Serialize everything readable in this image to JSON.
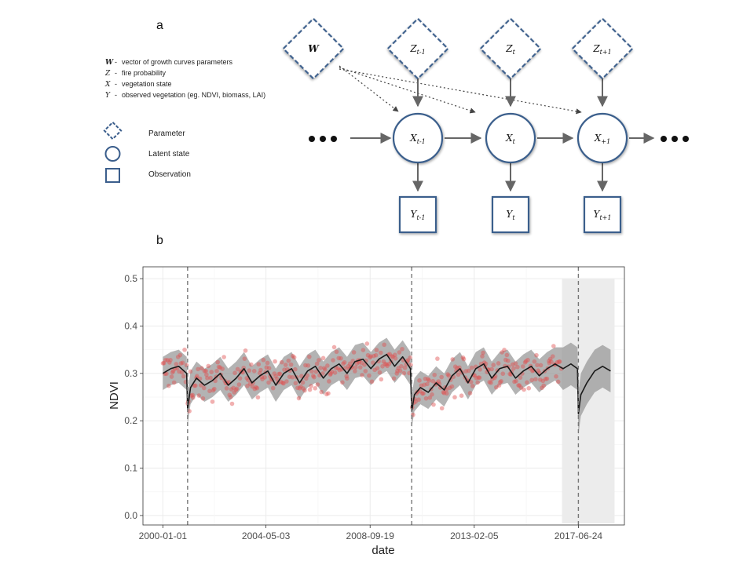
{
  "panel_a": {
    "label": "a",
    "definitions": [
      {
        "symbol": "W",
        "bold": true,
        "text": "vector of growth curves parameters"
      },
      {
        "symbol": "Z",
        "bold": false,
        "text": "fire probability"
      },
      {
        "symbol": "X",
        "bold": false,
        "text": "vegetation state"
      },
      {
        "symbol": "Y",
        "bold": false,
        "text": "observed vegetation (eg. NDVI, biomass, LAI)"
      }
    ],
    "shape_legend": [
      {
        "shape": "diamond-dashed",
        "label": "Parameter"
      },
      {
        "shape": "circle",
        "label": "Latent state"
      },
      {
        "shape": "square",
        "label": "Observation"
      }
    ],
    "nodes": {
      "w": {
        "base": "W",
        "sub": ""
      },
      "z": [
        {
          "base": "Z",
          "sub": "t-1"
        },
        {
          "base": "Z",
          "sub": "t"
        },
        {
          "base": "Z",
          "sub": "t+1"
        }
      ],
      "x": [
        {
          "base": "X",
          "sub": "t-1"
        },
        {
          "base": "X",
          "sub": "t"
        },
        {
          "base": "X",
          "sub": "+1"
        }
      ],
      "y": [
        {
          "base": "Y",
          "sub": "t-1"
        },
        {
          "base": "Y",
          "sub": "t"
        },
        {
          "base": "Y",
          "sub": "t+1"
        }
      ]
    },
    "colors": {
      "node_stroke": "#3b5e8c",
      "arrow": "#666666"
    }
  },
  "panel_b": {
    "label": "b",
    "chart_data": {
      "type": "line",
      "title": "",
      "xlabel": "date",
      "ylabel": "NDVI",
      "x_ticks": [
        "2000-01-01",
        "2004-05-03",
        "2008-09-19",
        "2013-02-05",
        "2017-06-24"
      ],
      "y_ticks": [
        "0.0",
        "0.1",
        "0.2",
        "0.3",
        "0.4",
        "0.5"
      ],
      "ylim": [
        -0.02,
        0.525
      ],
      "xlim": [
        "1999-03-01",
        "2019-06-01"
      ],
      "fire_dates": [
        "2001-01-15",
        "2010-06-20",
        "2017-06-24"
      ],
      "forecast_region": [
        "2016-10-15",
        "2019-01-01"
      ],
      "grid": true,
      "colors": {
        "line": "#1a1a1a",
        "ribbon": "#9a9a9a",
        "points": "#e05050",
        "forecast_bg": "#ececec",
        "fire_line": "#777777"
      },
      "series": [
        {
          "kind": "mean",
          "x": [
            "2000-01-01",
            "2000-05-01",
            "2000-09-01",
            "2001-01-01",
            "2001-01-15",
            "2001-03-01",
            "2001-06-01",
            "2001-10-01",
            "2002-02-01",
            "2002-06-01",
            "2002-10-01",
            "2003-02-01",
            "2003-06-01",
            "2003-10-01",
            "2004-02-01",
            "2004-06-01",
            "2004-10-01",
            "2005-02-01",
            "2005-06-01",
            "2005-10-01",
            "2006-02-01",
            "2006-06-01",
            "2006-10-01",
            "2007-02-01",
            "2007-06-01",
            "2007-10-01",
            "2008-02-01",
            "2008-06-01",
            "2008-10-01",
            "2009-02-01",
            "2009-06-01",
            "2009-10-01",
            "2010-02-01",
            "2010-06-01",
            "2010-06-20",
            "2010-08-01",
            "2010-11-01",
            "2011-03-01",
            "2011-07-01",
            "2011-11-01",
            "2012-03-01",
            "2012-07-01",
            "2012-11-01",
            "2013-03-01",
            "2013-07-01",
            "2013-11-01",
            "2014-03-01",
            "2014-07-01",
            "2014-11-01",
            "2015-03-01",
            "2015-07-01",
            "2015-11-01",
            "2016-03-01",
            "2016-07-01",
            "2016-11-01",
            "2017-03-01",
            "2017-06-10",
            "2017-06-24",
            "2017-08-01",
            "2017-11-01",
            "2018-03-01",
            "2018-07-01",
            "2018-11-01"
          ],
          "y": [
            0.3,
            0.31,
            0.315,
            0.3,
            0.225,
            0.27,
            0.29,
            0.275,
            0.285,
            0.3,
            0.275,
            0.29,
            0.31,
            0.28,
            0.295,
            0.305,
            0.275,
            0.3,
            0.31,
            0.28,
            0.305,
            0.315,
            0.29,
            0.31,
            0.32,
            0.3,
            0.325,
            0.33,
            0.31,
            0.33,
            0.34,
            0.315,
            0.335,
            0.31,
            0.22,
            0.255,
            0.27,
            0.26,
            0.28,
            0.265,
            0.295,
            0.31,
            0.28,
            0.31,
            0.32,
            0.29,
            0.31,
            0.315,
            0.29,
            0.305,
            0.315,
            0.295,
            0.31,
            0.32,
            0.31,
            0.32,
            0.31,
            0.215,
            0.255,
            0.28,
            0.305,
            0.315,
            0.305
          ]
        },
        {
          "kind": "band",
          "half_width_obs": 0.035,
          "half_width_forecast": 0.045
        },
        {
          "kind": "observations",
          "count": 420
        }
      ]
    }
  }
}
